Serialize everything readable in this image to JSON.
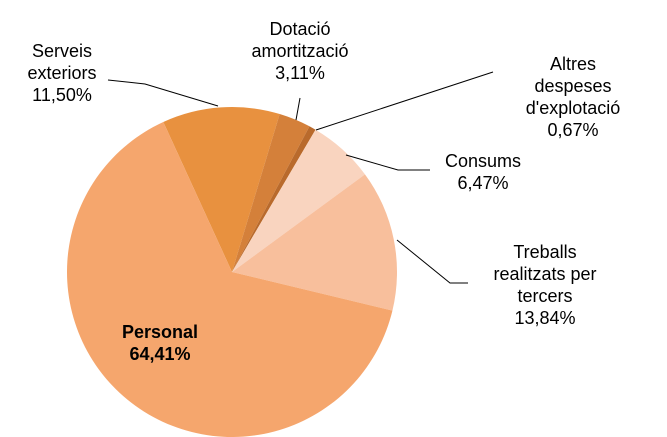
{
  "chart_data": {
    "type": "pie",
    "categories": [
      "Serveis\nexteriors",
      "Dotació\namortització",
      "Altres despeses\nd'explotació",
      "Consums",
      "Treballs\nrealitzats per\ntercers",
      "Personal"
    ],
    "values": [
      11.5,
      3.11,
      0.67,
      6.47,
      13.84,
      64.41
    ],
    "value_labels": [
      "11,50%",
      "3,11%",
      "0,67%",
      "6,47%",
      "13,84%",
      "64,41%"
    ],
    "colors": [
      "#e8913f",
      "#d4803a",
      "#b96a2c",
      "#f9d4bf",
      "#f8bf9c",
      "#f5a66d"
    ]
  }
}
